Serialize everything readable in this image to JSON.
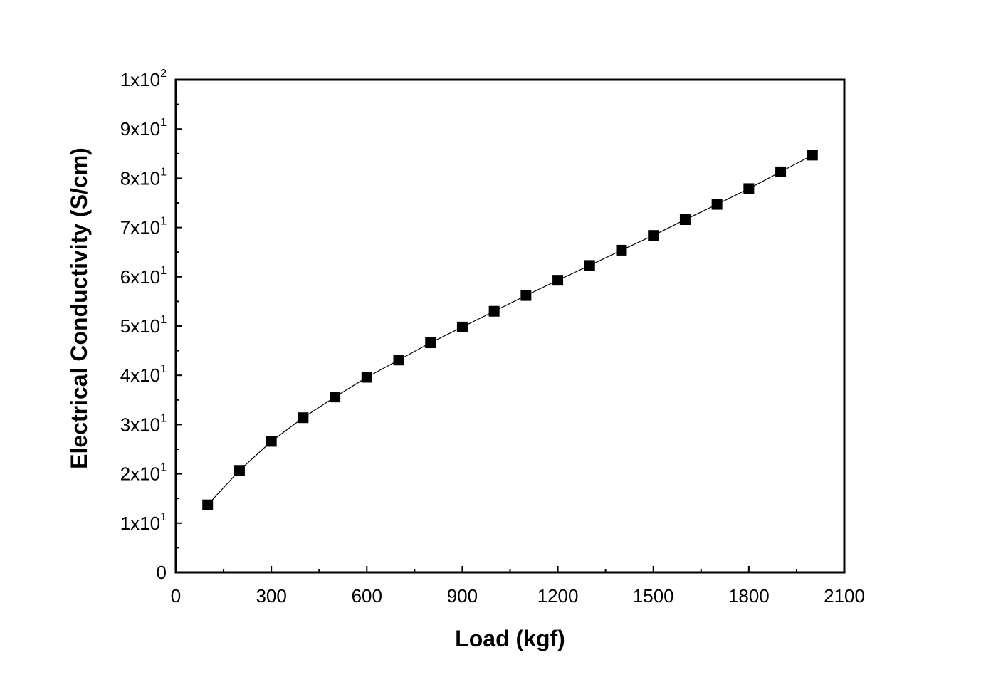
{
  "chart_data": {
    "type": "line",
    "xlabel": "Load (kgf)",
    "ylabel": "Electrical Conductivity (S/cm)",
    "xlim": [
      0,
      2100
    ],
    "ylim": [
      0,
      100
    ],
    "x_ticks": [
      0,
      300,
      600,
      900,
      1200,
      1500,
      1800,
      2100
    ],
    "x_tick_labels": [
      "0",
      "300",
      "600",
      "900",
      "1200",
      "1500",
      "1800",
      "2100"
    ],
    "y_ticks": [
      0,
      10,
      20,
      30,
      40,
      50,
      60,
      70,
      80,
      90,
      100
    ],
    "y_tick_labels": [
      {
        "base": "0",
        "exp": ""
      },
      {
        "base": "1x10",
        "exp": "1"
      },
      {
        "base": "2x10",
        "exp": "1"
      },
      {
        "base": "3x10",
        "exp": "1"
      },
      {
        "base": "4x10",
        "exp": "1"
      },
      {
        "base": "5x10",
        "exp": "1"
      },
      {
        "base": "6x10",
        "exp": "1"
      },
      {
        "base": "7x10",
        "exp": "1"
      },
      {
        "base": "8x10",
        "exp": "1"
      },
      {
        "base": "9x10",
        "exp": "1"
      },
      {
        "base": "1x10",
        "exp": "2"
      }
    ],
    "grid": false,
    "series": [
      {
        "marker": "square",
        "color": "#000000",
        "x": [
          100,
          200,
          300,
          400,
          500,
          600,
          700,
          800,
          900,
          1000,
          1100,
          1200,
          1300,
          1400,
          1500,
          1600,
          1700,
          1800,
          1900,
          2000
        ],
        "y": [
          13.7,
          20.7,
          26.6,
          31.4,
          35.6,
          39.6,
          43.1,
          46.6,
          49.8,
          53.0,
          56.2,
          59.3,
          62.3,
          65.4,
          68.4,
          71.6,
          74.7,
          77.9,
          81.3,
          84.7
        ]
      }
    ]
  }
}
